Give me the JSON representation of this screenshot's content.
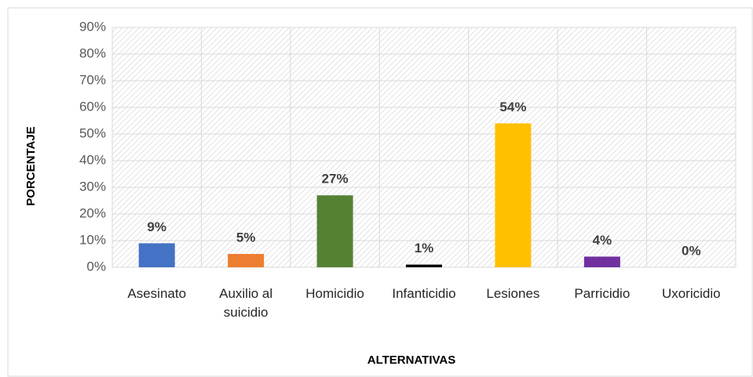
{
  "chart_data": {
    "type": "bar",
    "categories": [
      "Asesinato",
      "Auxilio al suicidio",
      "Homicidio",
      "Infanticidio",
      "Lesiones",
      "Parricidio",
      "Uxoricidio"
    ],
    "values": [
      9,
      5,
      27,
      1,
      54,
      4,
      0
    ],
    "value_labels": [
      "9%",
      "5%",
      "27%",
      "1%",
      "54%",
      "4%",
      "0%"
    ],
    "colors": [
      "#4472c4",
      "#ed7d31",
      "#548235",
      "#000000",
      "#ffc000",
      "#7030a0",
      "#a5a5a5"
    ],
    "ylim": [
      0,
      90
    ],
    "yticks": [
      {
        "value": 0,
        "label": "0%"
      },
      {
        "value": 10,
        "label": "10%"
      },
      {
        "value": 20,
        "label": "20%"
      },
      {
        "value": 30,
        "label": "30%"
      },
      {
        "value": 40,
        "label": "40%"
      },
      {
        "value": 50,
        "label": "50%"
      },
      {
        "value": 60,
        "label": "60%"
      },
      {
        "value": 70,
        "label": "70%"
      },
      {
        "value": 80,
        "label": "80%"
      },
      {
        "value": 90,
        "label": "90%"
      }
    ],
    "grid": true,
    "ylabel": "PORCENTAJE",
    "xlabel": "ALTERNATIVAS"
  }
}
